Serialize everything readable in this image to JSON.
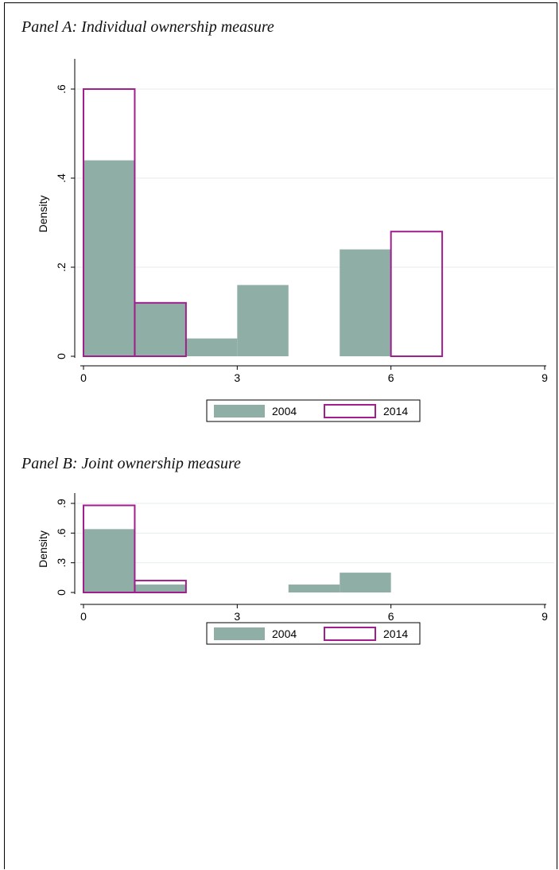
{
  "colors": {
    "s2004": "#8fafa6",
    "s2014": "#a01f8c",
    "grid": "#e6efec",
    "axis": "#000000"
  },
  "chart_data": [
    {
      "type": "bar",
      "title": "Panel A: Individual ownership measure",
      "ylabel": "Density",
      "xlabel": "",
      "xlim": [
        0,
        9
      ],
      "ylim": [
        0,
        0.6
      ],
      "xticks": [
        0,
        3,
        6,
        9
      ],
      "yticks": [
        0,
        0.2,
        0.4,
        0.6
      ],
      "ytick_labels": [
        "0",
        ".2",
        ".4",
        ".6"
      ],
      "grid": true,
      "legend": "bottom",
      "bin_width": 1,
      "series": [
        {
          "name": "2004",
          "style": "filled",
          "bins": [
            {
              "x": 0,
              "value": 0.44
            },
            {
              "x": 1,
              "value": 0.12
            },
            {
              "x": 2,
              "value": 0.04
            },
            {
              "x": 3,
              "value": 0.16
            },
            {
              "x": 5,
              "value": 0.24
            }
          ]
        },
        {
          "name": "2014",
          "style": "outline",
          "bins": [
            {
              "x": 0,
              "value": 0.6
            },
            {
              "x": 1,
              "value": 0.12
            },
            {
              "x": 6,
              "value": 0.28
            }
          ]
        }
      ]
    },
    {
      "type": "bar",
      "title": "Panel B: Joint ownership measure",
      "ylabel": "Density",
      "xlabel": "",
      "xlim": [
        0,
        9
      ],
      "ylim": [
        0,
        0.9
      ],
      "xticks": [
        0,
        3,
        6,
        9
      ],
      "yticks": [
        0,
        0.3,
        0.6,
        0.9
      ],
      "ytick_labels": [
        "0",
        ".3",
        ".6",
        ".9"
      ],
      "grid": true,
      "legend": "bottom",
      "bin_width": 1,
      "series": [
        {
          "name": "2004",
          "style": "filled",
          "bins": [
            {
              "x": 0,
              "value": 0.64
            },
            {
              "x": 1,
              "value": 0.08
            },
            {
              "x": 4,
              "value": 0.08
            },
            {
              "x": 5,
              "value": 0.2
            }
          ]
        },
        {
          "name": "2014",
          "style": "outline",
          "bins": [
            {
              "x": 0,
              "value": 0.88
            },
            {
              "x": 1,
              "value": 0.12
            }
          ]
        }
      ]
    }
  ]
}
